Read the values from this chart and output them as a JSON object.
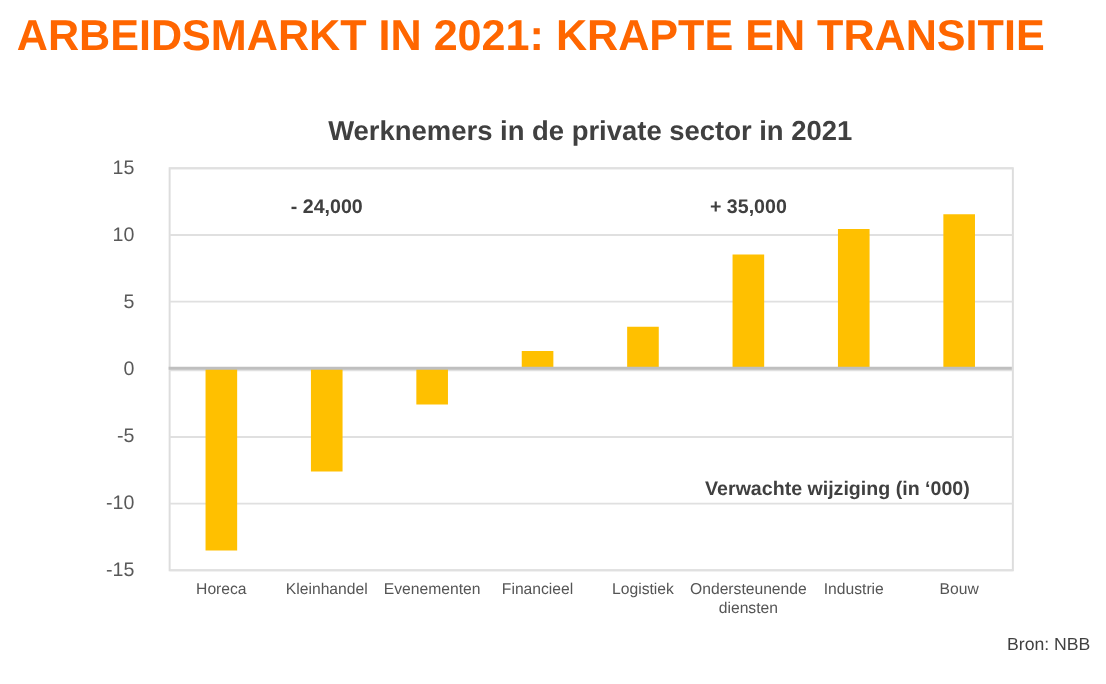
{
  "chart_data": {
    "type": "bar",
    "title": "ARBEIDSMARKT IN  2021: KRAPTE EN TRANSITIE",
    "subtitle": "Werknemers in de private sector in 2021",
    "categories": [
      "Horeca",
      "Kleinhandel",
      "Evenementen",
      "Financieel",
      "Logistiek",
      "Ondersteunende diensten",
      "Industrie",
      "Bouw"
    ],
    "values": [
      -13.6,
      -7.7,
      -2.7,
      1.3,
      3.1,
      8.5,
      10.4,
      11.5
    ],
    "color": "#ffc000",
    "ylim": [
      -15,
      15
    ],
    "yticks": [
      -15,
      -10,
      -5,
      0,
      5,
      10,
      15
    ],
    "grid": "y",
    "annotations": [
      "- 24,000",
      "+ 35,000",
      "Verwachte wijziging (in ‘000)",
      "Bron: NBB"
    ]
  }
}
